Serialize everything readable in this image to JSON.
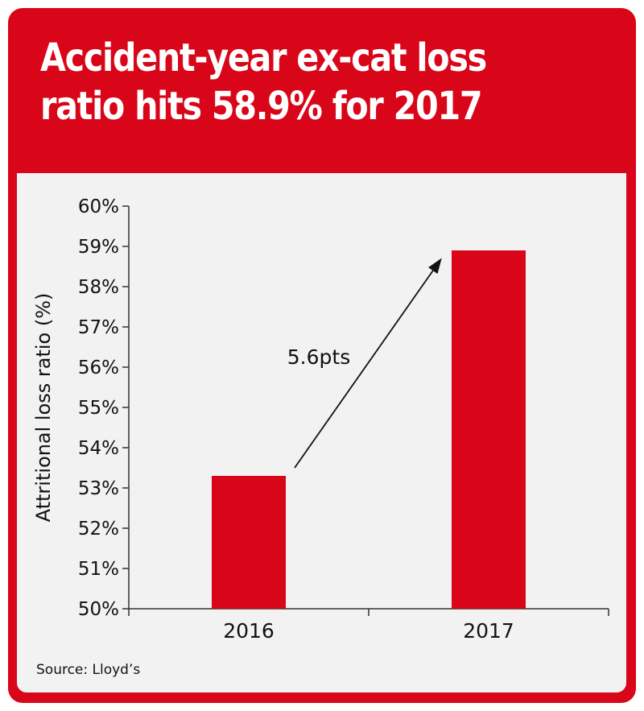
{
  "chart_data": {
    "type": "bar",
    "title": "Accident-year ex-cat loss ratio hits 58.9% for 2017",
    "title_lines": [
      "Accident-year ex-cat loss",
      "ratio hits 58.9% for 2017"
    ],
    "categories": [
      "2016",
      "2017"
    ],
    "values": [
      53.3,
      58.9
    ],
    "ylabel": "Attritional loss ratio (%)",
    "xlabel": "",
    "ylim": [
      50,
      60
    ],
    "yticks": [
      50,
      51,
      52,
      53,
      54,
      55,
      56,
      57,
      58,
      59,
      60
    ],
    "ytick_labels": [
      "50%",
      "51%",
      "52%",
      "53%",
      "54%",
      "55%",
      "56%",
      "57%",
      "58%",
      "59%",
      "60%"
    ],
    "annotation": "5.6pts",
    "grid": false,
    "legend": "none",
    "bar_color": "#d9061a",
    "source": "Source: Lloyd’s"
  },
  "colors": {
    "frame": "#d9061a",
    "panel": "#f2f2f2",
    "title_text": "#ffffff",
    "text": "#111111"
  }
}
